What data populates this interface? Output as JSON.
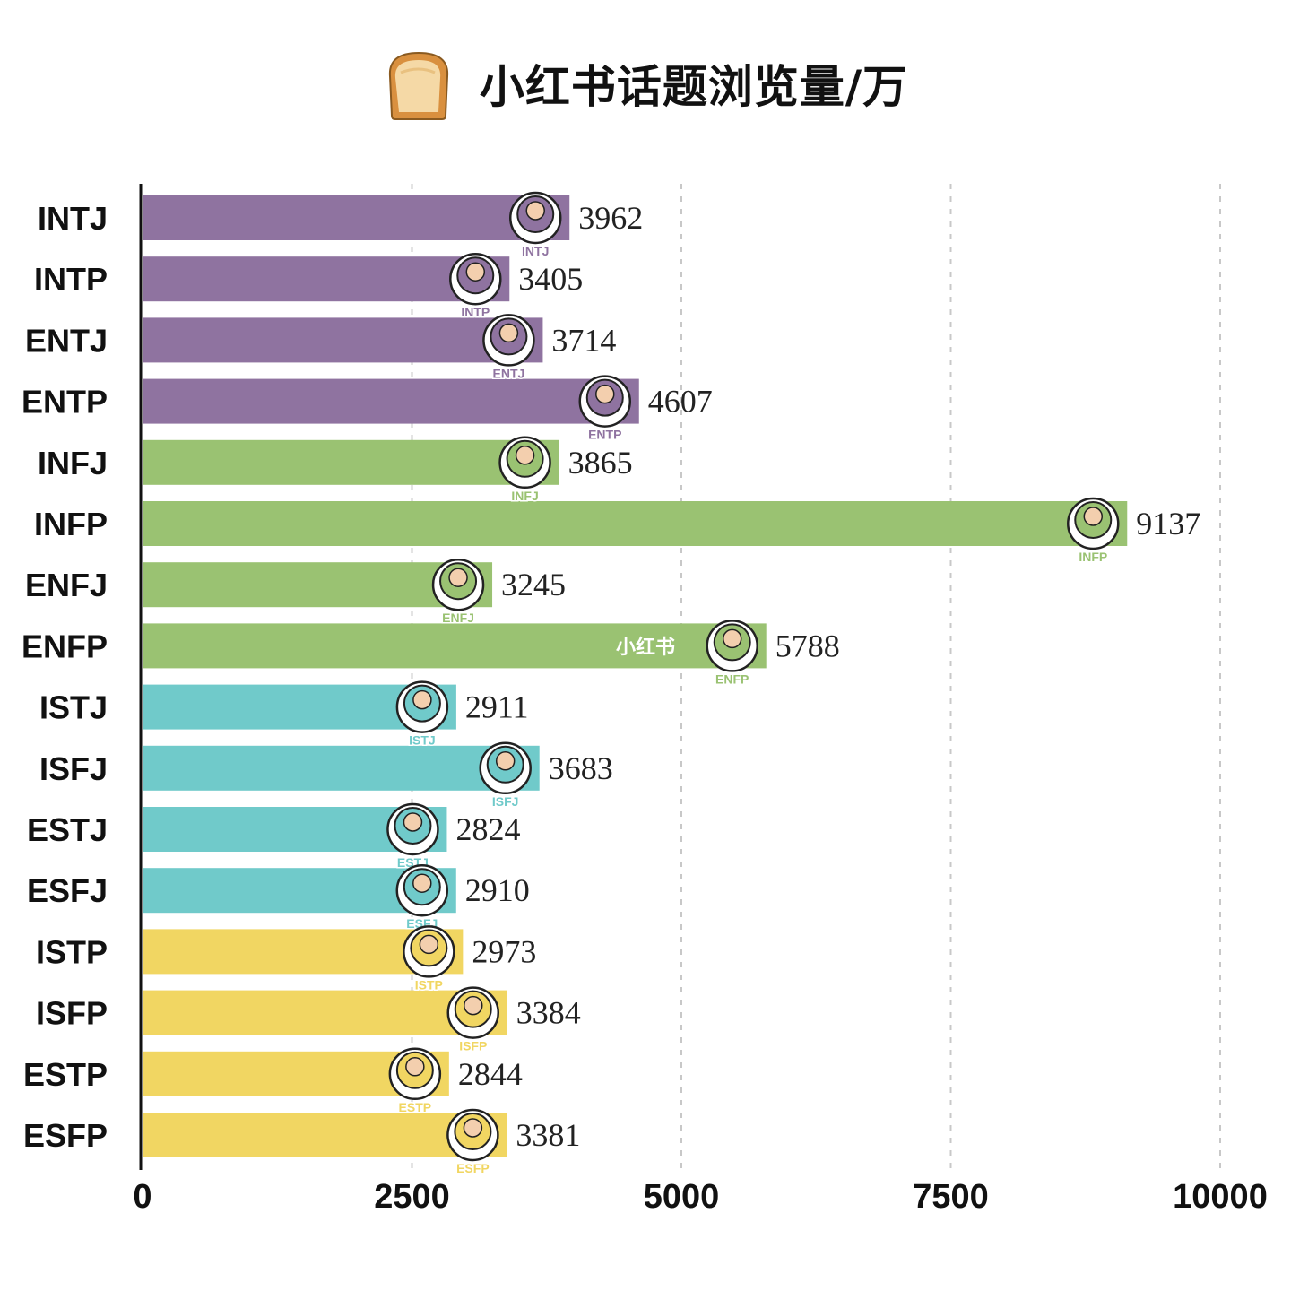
{
  "title": {
    "text": "小红书话题浏览量/万",
    "icon": "bread-icon"
  },
  "watermark": "小红书",
  "colors": {
    "NT": "#8F73A0",
    "NF": "#9AC272",
    "SJ": "#70CACA",
    "SP": "#F1D662",
    "axis": "#111111",
    "grid": "#c8c8c8"
  },
  "chart_data": {
    "type": "bar",
    "orientation": "horizontal",
    "title": "小红书话题浏览量/万",
    "xlabel": "",
    "ylabel": "",
    "xlim": [
      0,
      10000
    ],
    "xticks": [
      0,
      2500,
      5000,
      7500,
      10000
    ],
    "grid": "vertical dashed",
    "categories": [
      "INTJ",
      "INTP",
      "ENTJ",
      "ENTP",
      "INFJ",
      "INFP",
      "ENFJ",
      "ENFP",
      "ISTJ",
      "ISFJ",
      "ESTJ",
      "ESFJ",
      "ISTP",
      "ISFP",
      "ESTP",
      "ESFP"
    ],
    "values": [
      3962,
      3405,
      3714,
      4607,
      3865,
      9137,
      3245,
      5788,
      2911,
      3683,
      2824,
      2910,
      2973,
      3384,
      2844,
      3381
    ],
    "groups": [
      "NT",
      "NT",
      "NT",
      "NT",
      "NF",
      "NF",
      "NF",
      "NF",
      "SJ",
      "SJ",
      "SJ",
      "SJ",
      "SP",
      "SP",
      "SP",
      "SP"
    ]
  }
}
